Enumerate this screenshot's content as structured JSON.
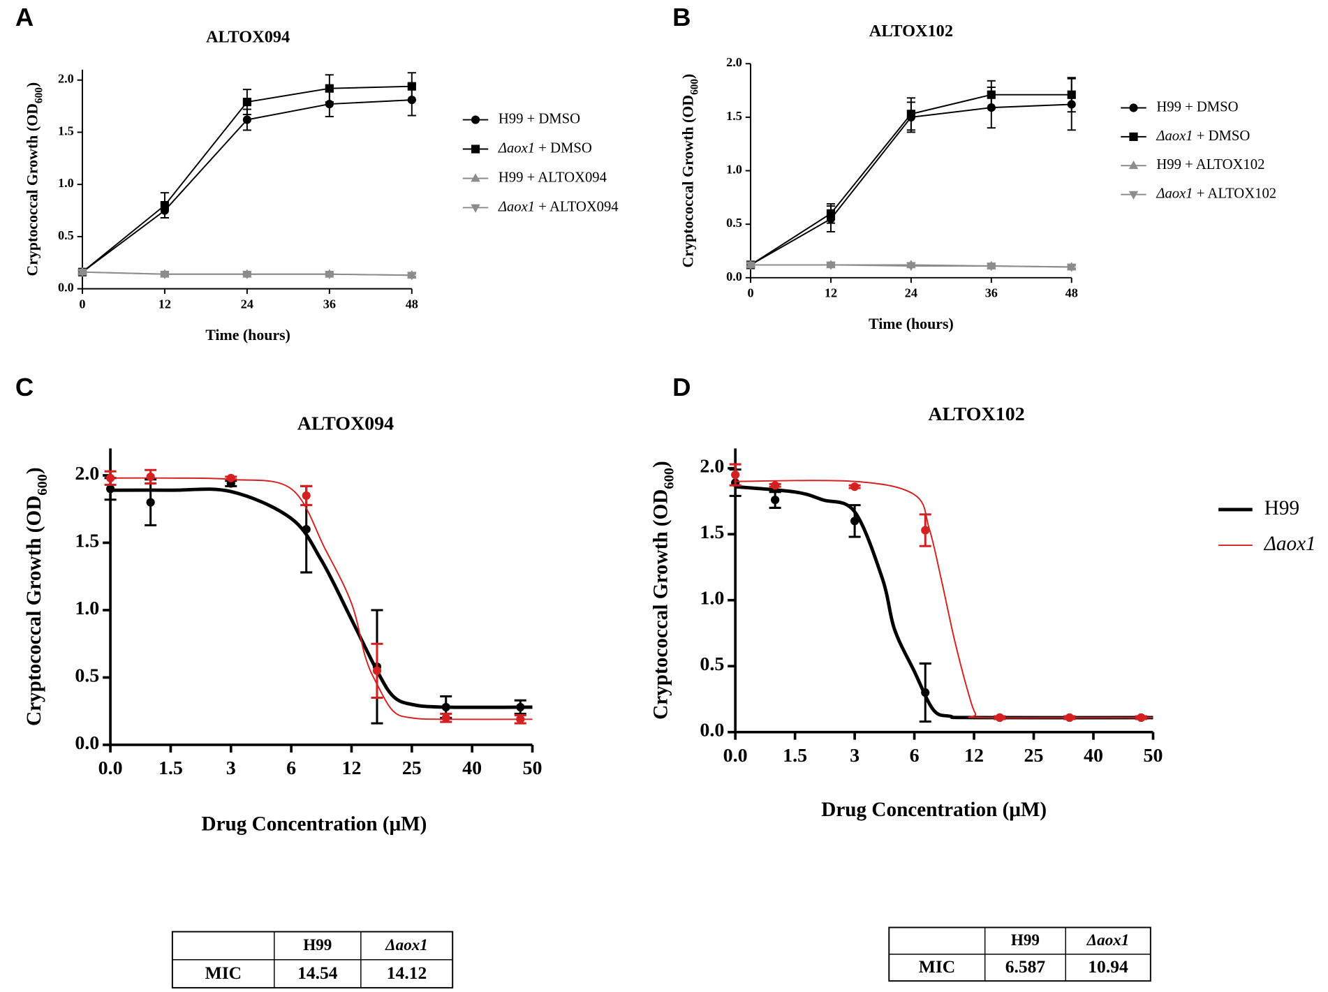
{
  "chart_data": [
    {
      "type": "line",
      "panel_label": "A",
      "title": "ALTOX094",
      "x_label": "Time (hours)",
      "y_label": "Cryptococcal Growth (OD600)",
      "x": [
        0,
        12,
        24,
        36,
        48
      ],
      "xlim": [
        0,
        48
      ],
      "xticks": [
        0,
        12,
        24,
        36,
        48
      ],
      "ylim": [
        0,
        2.1
      ],
      "yticks": [
        {
          "value": 0,
          "label": "0.0"
        },
        0.5,
        {
          "value": 1,
          "label": "1.0"
        },
        1.5,
        {
          "value": 2,
          "label": "2.0"
        }
      ],
      "legend": "right",
      "series": [
        {
          "name": "H99 + DMSO",
          "color": "#000000",
          "marker": "circle",
          "values": [
            0.16,
            0.75,
            1.62,
            1.77,
            1.81
          ],
          "errors": [
            0.02,
            0.07,
            0.1,
            0.12,
            0.15
          ]
        },
        {
          "name": "Δaox1 + DMSO",
          "color": "#000000",
          "marker": "square",
          "values": [
            0.16,
            0.8,
            1.79,
            1.92,
            1.94
          ],
          "errors": [
            0.02,
            0.12,
            0.12,
            0.13,
            0.13
          ]
        },
        {
          "name": "H99 + ALTOX094",
          "color": "#8c8c8c",
          "marker": "triangle-up",
          "values": [
            0.16,
            0.14,
            0.14,
            0.14,
            0.13
          ],
          "errors": [
            0.01,
            0.02,
            0.01,
            0.01,
            0.02
          ]
        },
        {
          "name": "Δaox1 + ALTOX094",
          "color": "#8c8c8c",
          "marker": "triangle-down",
          "values": [
            0.16,
            0.14,
            0.14,
            0.14,
            0.13
          ],
          "errors": [
            0.01,
            0.01,
            0.01,
            0.01,
            0.01
          ]
        }
      ]
    },
    {
      "type": "line",
      "panel_label": "B",
      "title": "ALTOX102",
      "x_label": "Time (hours)",
      "y_label": "Cryptococcal Growth (OD600)",
      "x": [
        0,
        12,
        24,
        36,
        48
      ],
      "xlim": [
        0,
        48
      ],
      "xticks": [
        0,
        12,
        24,
        36,
        48
      ],
      "ylim": [
        0,
        2.0
      ],
      "yticks": [
        {
          "value": 0,
          "label": "0.0"
        },
        0.5,
        {
          "value": 1,
          "label": "1.0"
        },
        1.5,
        {
          "value": 2,
          "label": "2.0"
        }
      ],
      "legend": "right",
      "series": [
        {
          "name": "H99 + DMSO",
          "color": "#000000",
          "marker": "circle",
          "values": [
            0.12,
            0.55,
            1.5,
            1.59,
            1.62
          ],
          "errors": [
            0.02,
            0.12,
            0.14,
            0.19,
            0.24
          ]
        },
        {
          "name": "Δaox1 + DMSO",
          "color": "#000000",
          "marker": "square",
          "values": [
            0.12,
            0.6,
            1.53,
            1.71,
            1.71
          ],
          "errors": [
            0.02,
            0.09,
            0.15,
            0.13,
            0.16
          ]
        },
        {
          "name": "H99 + ALTOX102",
          "color": "#8c8c8c",
          "marker": "triangle-up",
          "values": [
            0.12,
            0.12,
            0.12,
            0.11,
            0.1
          ],
          "errors": [
            0.01,
            0.02,
            0.02,
            0.02,
            0.02
          ]
        },
        {
          "name": "Δaox1 + ALTOX102",
          "color": "#8c8c8c",
          "marker": "triangle-down",
          "values": [
            0.12,
            0.12,
            0.11,
            0.11,
            0.1
          ],
          "errors": [
            0.01,
            0.01,
            0.01,
            0.01,
            0.01
          ]
        }
      ]
    },
    {
      "type": "dose-response",
      "panel_label": "C",
      "title": "ALTOX094",
      "x_label": "Drug Concentration (μM)",
      "y_label": "Cryptococcal Growth (OD600)",
      "x": [
        0,
        1,
        3,
        7.5,
        17.5,
        33.5,
        48
      ],
      "xlim": [
        0,
        50
      ],
      "xticks_evenly_spaced": true,
      "xticks": [
        {
          "value": 0,
          "label": "0.0"
        },
        1.5,
        3,
        6,
        12,
        25,
        40,
        50
      ],
      "ylim": [
        0,
        2.2
      ],
      "yticks": [
        {
          "value": 0,
          "label": "0.0"
        },
        0.5,
        {
          "value": 1,
          "label": "1.0"
        },
        1.5,
        {
          "value": 2,
          "label": "2.0"
        }
      ],
      "series": [
        {
          "name": "H99",
          "color": "#000000",
          "values": [
            1.9,
            1.8,
            1.94,
            1.6,
            0.58,
            0.28,
            0.28
          ],
          "errors": [
            0.08,
            0.17,
            0.02,
            0.32,
            0.42,
            0.08,
            0.05
          ],
          "fit_x": [
            0,
            1.5,
            3,
            6,
            9,
            12,
            17.5,
            21,
            25,
            33,
            50
          ],
          "fit_values": [
            1.89,
            1.89,
            1.88,
            1.68,
            1.37,
            0.93,
            0.55,
            0.36,
            0.3,
            0.28,
            0.28
          ]
        },
        {
          "name": "Δaox1",
          "color": "#d42020",
          "values": [
            1.98,
            1.99,
            1.98,
            1.85,
            0.55,
            0.2,
            0.19
          ],
          "errors": [
            0.05,
            0.05,
            0.01,
            0.07,
            0.2,
            0.03,
            0.03
          ],
          "fit_x": [
            0,
            1.5,
            3,
            6,
            9.4,
            12,
            15,
            17.5,
            21,
            25,
            33,
            50
          ],
          "fit_values": [
            1.98,
            1.98,
            1.97,
            1.9,
            1.45,
            1.05,
            0.65,
            0.45,
            0.25,
            0.2,
            0.19,
            0.19
          ]
        }
      ],
      "mic_table": {
        "columns": [
          "H99",
          "Δaox1"
        ],
        "rows": [
          {
            "label": "MIC",
            "values": [
              14.54,
              14.12
            ]
          }
        ]
      }
    },
    {
      "type": "dose-response",
      "panel_label": "D",
      "title": "ALTOX102",
      "x_label": "Drug Concentration (μM)",
      "y_label": "Cryptococcal Growth (OD600)",
      "x": [
        0,
        1,
        3,
        7.1,
        17.6,
        34,
        48
      ],
      "xlim": [
        0,
        50
      ],
      "xticks_evenly_spaced": true,
      "xticks": [
        {
          "value": 0,
          "label": "0.0"
        },
        1.5,
        3,
        6,
        12,
        25,
        40,
        50
      ],
      "ylim": [
        0,
        2.15
      ],
      "yticks": [
        {
          "value": 0,
          "label": "0.0"
        },
        0.5,
        {
          "value": 1,
          "label": "1.0"
        },
        1.5,
        {
          "value": 2,
          "label": "2.0"
        }
      ],
      "legend": "right",
      "series": [
        {
          "name": "H99",
          "color": "#000000",
          "values": [
            1.89,
            1.76,
            1.6,
            0.3,
            0.11,
            0.11,
            0.11
          ],
          "errors": [
            0.1,
            0.06,
            0.12,
            0.22,
            0.01,
            0.01,
            0.01
          ],
          "fit_x": [
            0,
            1.5,
            2.2,
            3,
            4.4,
            5,
            6,
            7.9,
            9.6,
            12,
            50
          ],
          "fit_values": [
            1.86,
            1.82,
            1.76,
            1.67,
            1.16,
            0.78,
            0.46,
            0.17,
            0.12,
            0.11,
            0.11
          ]
        },
        {
          "name": "Δaox1",
          "color": "#d42020",
          "values": [
            1.95,
            1.87,
            1.86,
            1.53,
            0.11,
            0.11,
            0.11
          ],
          "errors": [
            0.08,
            0.01,
            0.01,
            0.12,
            0.01,
            0.01,
            0.01
          ],
          "fit_x": [
            0,
            3,
            6,
            7.5,
            8.7,
            10,
            11.3,
            12.3,
            14,
            50
          ],
          "fit_values": [
            1.9,
            1.9,
            1.8,
            1.54,
            1.16,
            0.71,
            0.33,
            0.14,
            0.11,
            0.11
          ]
        }
      ],
      "mic_table": {
        "columns": [
          "H99",
          "Δaox1"
        ],
        "rows": [
          {
            "label": "MIC",
            "values": [
              6.587,
              10.94
            ]
          }
        ]
      }
    }
  ]
}
